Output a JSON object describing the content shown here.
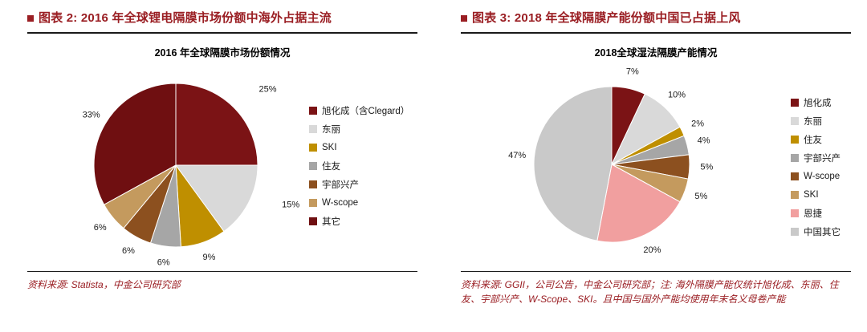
{
  "panels": [
    {
      "header": "图表 2: 2016 年全球锂电隔膜市场份额中海外占据主流",
      "source": "资料来源: Statista，中金公司研究部"
    },
    {
      "header": "图表 3: 2018 年全球隔膜产能份额中国已占据上风",
      "source": "资料来源: GGII，公司公告，中金公司研究部；注: 海外隔膜产能仅统计旭化成、东丽、住友、宇部兴产、W-Scope、SKI。且中国与国外产能均使用年末名义母卷产能"
    }
  ],
  "colors": {
    "accent_red": "#9a1e23",
    "rule": "#1a1a1a"
  },
  "chart_data": [
    {
      "type": "pie",
      "title": "2016 年全球隔膜市场份额情况",
      "legend_position": "right",
      "start_angle_deg": 0,
      "slices": [
        {
          "name": "旭化成（含Clegard）",
          "value": 25,
          "label": "25%",
          "color": "#7b1315"
        },
        {
          "name": "东丽",
          "value": 15,
          "label": "15%",
          "color": "#d9d9d9"
        },
        {
          "name": "SKI",
          "value": 9,
          "label": "9%",
          "color": "#bf8f00"
        },
        {
          "name": "住友",
          "value": 6,
          "label": "6%",
          "color": "#a6a6a6"
        },
        {
          "name": "宇部兴产",
          "value": 6,
          "label": "6%",
          "color": "#8c501f"
        },
        {
          "name": "W-scope",
          "value": 6,
          "label": "6%",
          "color": "#c49a5e"
        },
        {
          "name": "其它",
          "value": 33,
          "label": "33%",
          "color": "#6f0f11"
        }
      ]
    },
    {
      "type": "pie",
      "title": "2018全球湿法隔膜产能情况",
      "legend_position": "right",
      "start_angle_deg": 0,
      "slices": [
        {
          "name": "旭化成",
          "value": 7,
          "label": "7%",
          "color": "#7b1315"
        },
        {
          "name": "东丽",
          "value": 10,
          "label": "10%",
          "color": "#d9d9d9"
        },
        {
          "name": "住友",
          "value": 2,
          "label": "2%",
          "color": "#bf8f00"
        },
        {
          "name": "宇部兴产",
          "value": 4,
          "label": "4%",
          "color": "#a6a6a6"
        },
        {
          "name": "W-scope",
          "value": 5,
          "label": "5%",
          "color": "#8c501f"
        },
        {
          "name": "SKI",
          "value": 5,
          "label": "5%",
          "color": "#c49a5e"
        },
        {
          "name": "恩捷",
          "value": 20,
          "label": "20%",
          "color": "#f19f9f"
        },
        {
          "name": "中国其它",
          "value": 47,
          "label": "47%",
          "color": "#c9c9c9"
        }
      ]
    }
  ]
}
